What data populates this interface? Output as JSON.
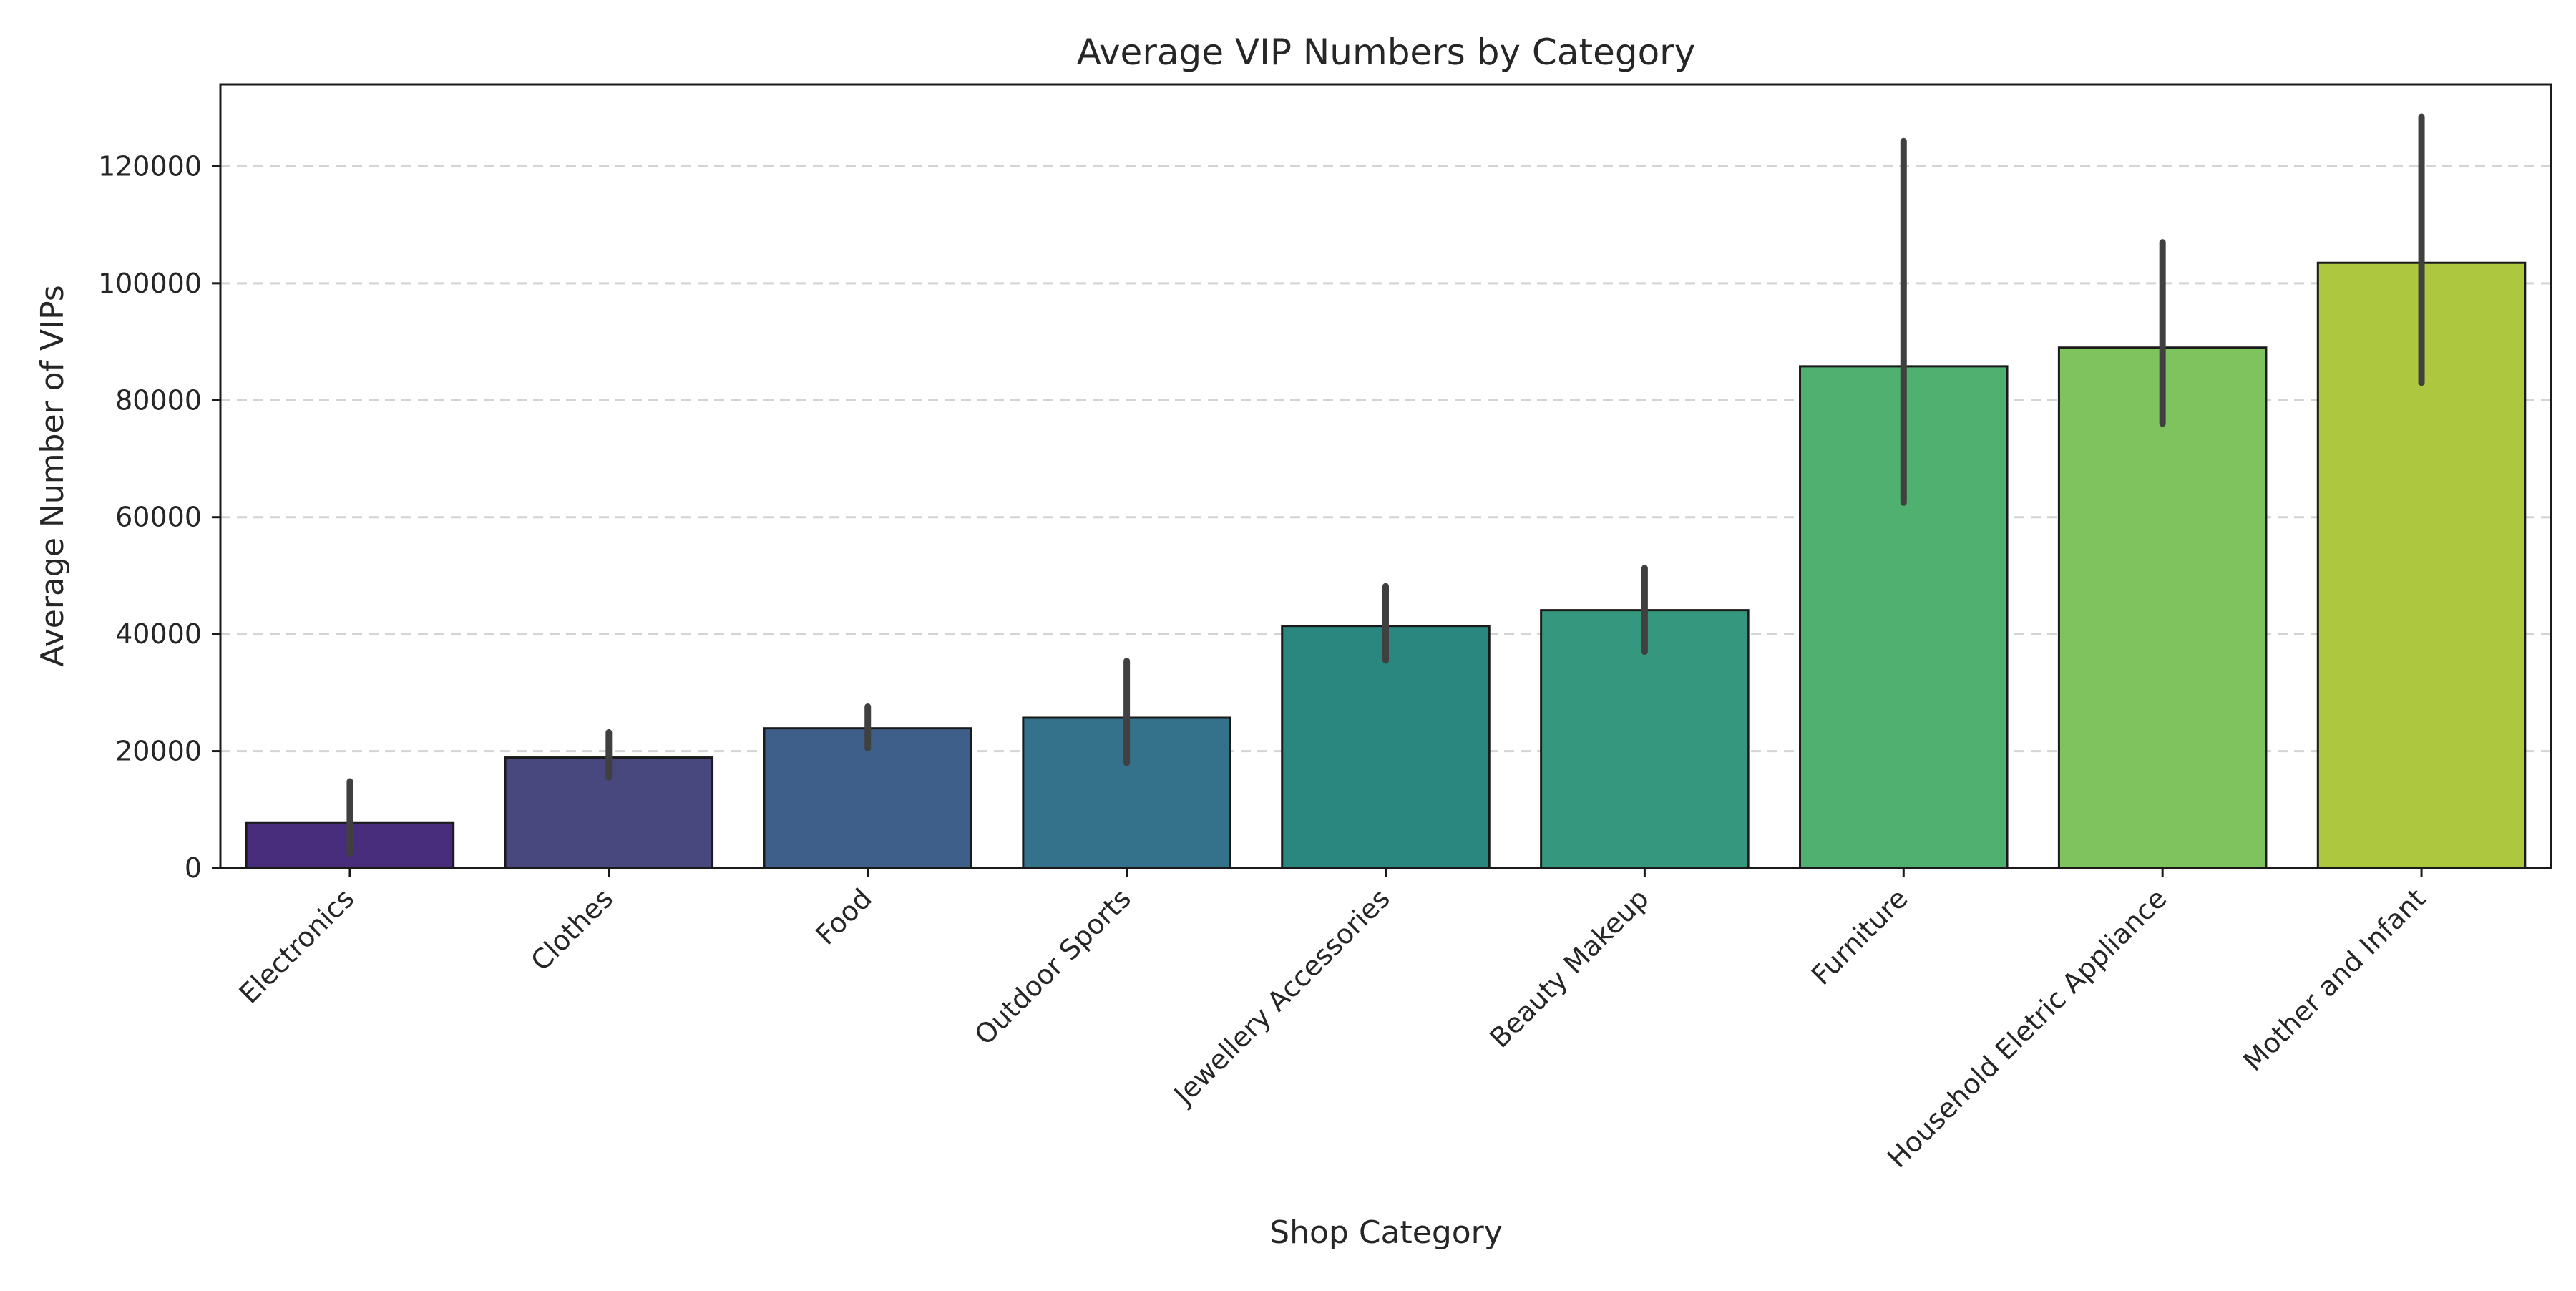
{
  "chart_data": {
    "type": "bar",
    "title": "Average VIP Numbers by Category",
    "xlabel": "Shop Category",
    "ylabel": "Average Number of VIPs",
    "categories": [
      "Electronics",
      "Clothes",
      "Food",
      "Outdoor Sports",
      "Jewellery Accessories",
      "Beauty Makeup",
      "Furniture",
      "Household Eletric Appliance",
      "Mother and Infant"
    ],
    "values": [
      7800,
      18900,
      23900,
      25700,
      41400,
      44100,
      85800,
      89000,
      103500
    ],
    "error_low": [
      2500,
      15500,
      20500,
      18000,
      35500,
      37000,
      62500,
      76000,
      83000
    ],
    "error_high": [
      14800,
      23200,
      27600,
      35400,
      48200,
      51300,
      124300,
      107000,
      128500
    ],
    "ylim": [
      0,
      134000
    ],
    "yticks": [
      0,
      20000,
      40000,
      60000,
      80000,
      100000,
      120000
    ],
    "grid": "horizontal dashed",
    "colors": [
      "#472d7b",
      "#48487f",
      "#3e5f8a",
      "#34728c",
      "#2a8780",
      "#35987e",
      "#50b06f",
      "#7fc35f",
      "#adc73f"
    ],
    "errorbar_color": "#404040",
    "edge_color": "#1a1a1a"
  }
}
